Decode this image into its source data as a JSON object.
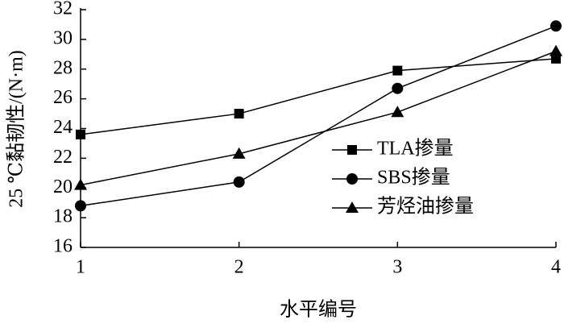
{
  "chart_data": {
    "type": "line",
    "xlabel": "水平编号",
    "ylabel": "25 ℃黏韧性/(N·m)",
    "x": [
      1,
      2,
      3,
      4
    ],
    "series": [
      {
        "name": "TLA掺量",
        "color": "#000000",
        "marker": "square",
        "values": [
          23.6,
          25.0,
          27.9,
          28.7
        ]
      },
      {
        "name": "SBS掺量",
        "color": "#000000",
        "marker": "circle",
        "values": [
          18.8,
          20.4,
          26.7,
          30.9
        ]
      },
      {
        "name": "芳烃油掺量",
        "color": "#000000",
        "marker": "triangle",
        "values": [
          20.2,
          22.3,
          25.1,
          29.2
        ]
      }
    ],
    "xlim": [
      1,
      4
    ],
    "xticks": [
      1,
      2,
      3,
      4
    ],
    "ylim": [
      16,
      32
    ],
    "yticks": [
      16,
      18,
      20,
      22,
      24,
      26,
      28,
      30,
      32
    ],
    "grid": false,
    "legend": "right"
  }
}
